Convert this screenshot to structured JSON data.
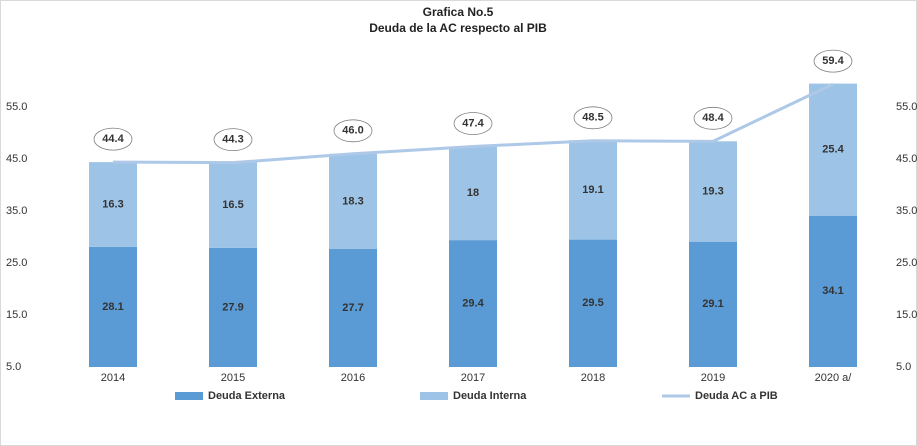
{
  "chart_data": {
    "type": "bar-line",
    "title": "Grafica No.5",
    "subtitle": "Deuda de la AC respecto al PIB",
    "categories": [
      "2014",
      "2015",
      "2016",
      "2017",
      "2018",
      "2019",
      "2020 a/"
    ],
    "series": [
      {
        "name": "Deuda Externa",
        "type": "bar",
        "color": "#5b9bd5",
        "values": [
          28.1,
          27.9,
          27.7,
          29.4,
          29.5,
          29.1,
          34.1
        ]
      },
      {
        "name": "Deuda Interna",
        "type": "bar",
        "color": "#9dc3e6",
        "values": [
          16.3,
          16.5,
          18.3,
          18.0,
          19.1,
          19.3,
          25.4
        ]
      },
      {
        "name": "Deuda AC a PIB",
        "type": "line",
        "color": "#aec8e8",
        "values": [
          44.4,
          44.3,
          46.0,
          47.4,
          48.5,
          48.4,
          59.4
        ],
        "value_labels": [
          "44.4",
          "44.3",
          "46.0",
          "47.4",
          "48.5",
          "48.4",
          "59.4"
        ]
      }
    ],
    "stacked": true,
    "ylim": [
      5,
      65
    ],
    "yticks": [
      {
        "value": 5,
        "label": "5.0"
      },
      {
        "value": 15,
        "label": "15.0"
      },
      {
        "value": 25,
        "label": "25.0"
      },
      {
        "value": 35,
        "label": "35.0"
      },
      {
        "value": 45,
        "label": "45.0"
      },
      {
        "value": 55,
        "label": "55.0"
      }
    ],
    "y2lim": [
      5,
      65
    ],
    "y2ticks": [
      {
        "value": 5,
        "label": "5.0"
      },
      {
        "value": 15,
        "label": "15.0"
      },
      {
        "value": 25,
        "label": "25.0"
      },
      {
        "value": 35,
        "label": "35.0"
      },
      {
        "value": 45,
        "label": "45.0"
      },
      {
        "value": 55,
        "label": "55.0"
      }
    ],
    "legend": "bottom"
  }
}
